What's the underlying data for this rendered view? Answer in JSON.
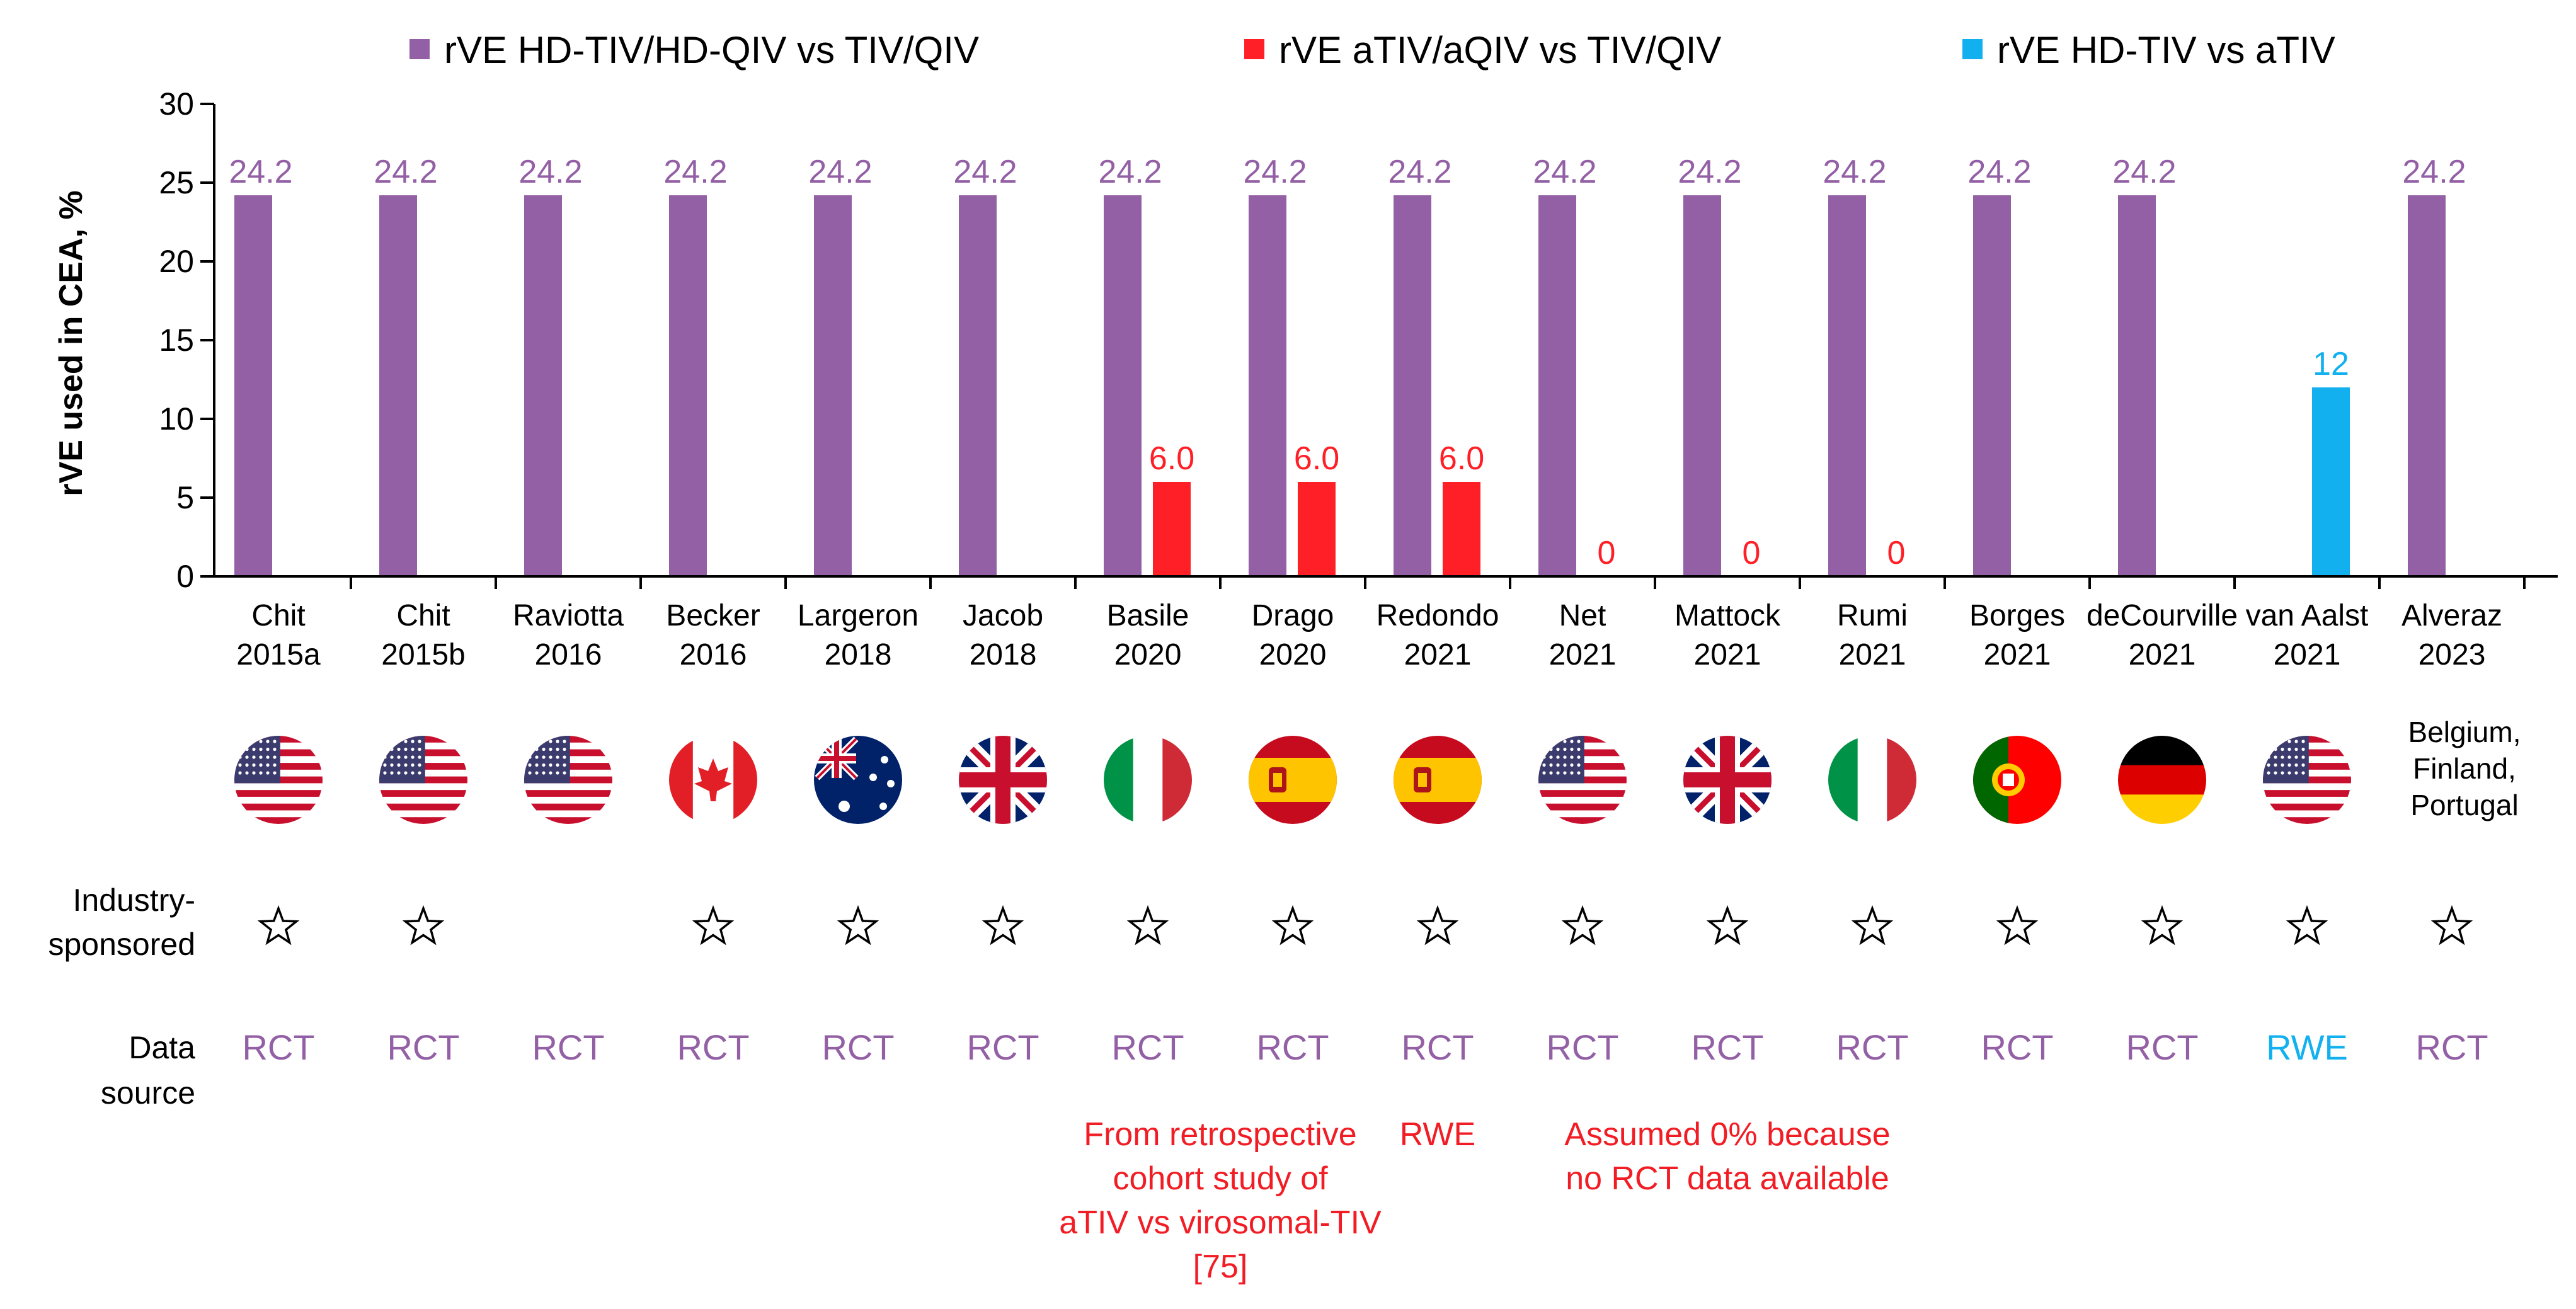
{
  "colors": {
    "hd": "#935fa5",
    "adj": "#ff1f26",
    "hdvsa": "#12b0ef",
    "note": "#f21c24"
  },
  "chart_data": {
    "type": "bar",
    "title": "",
    "ylabel": "rVE used in CEA, %",
    "ylim": [
      0,
      30
    ],
    "yticks": [
      0,
      5,
      10,
      15,
      20,
      25,
      30
    ],
    "legend": [
      {
        "key": "hd",
        "label": "rVE HD-TIV/HD-QIV vs TIV/QIV"
      },
      {
        "key": "adj",
        "label": "rVE aTIV/aQIV vs TIV/QIV"
      },
      {
        "key": "hdvsa",
        "label": "rVE HD-TIV vs aTIV"
      }
    ],
    "categories": [
      {
        "name": "Chit",
        "year": "2015a"
      },
      {
        "name": "Chit",
        "year": "2015b"
      },
      {
        "name": "Raviotta",
        "year": "2016"
      },
      {
        "name": "Becker",
        "year": "2016"
      },
      {
        "name": "Largeron",
        "year": "2018"
      },
      {
        "name": "Jacob",
        "year": "2018"
      },
      {
        "name": "Basile",
        "year": "2020"
      },
      {
        "name": "Drago",
        "year": "2020"
      },
      {
        "name": "Redondo",
        "year": "2021"
      },
      {
        "name": "Net",
        "year": "2021"
      },
      {
        "name": "Mattock",
        "year": "2021"
      },
      {
        "name": "Rumi",
        "year": "2021"
      },
      {
        "name": "Borges",
        "year": "2021"
      },
      {
        "name": "deCourville",
        "year": "2021"
      },
      {
        "name": "van Aalst",
        "year": "2021"
      },
      {
        "name": "Alveraz",
        "year": "2023"
      }
    ],
    "series": [
      {
        "name": "rVE HD-TIV/HD-QIV vs TIV/QIV",
        "key": "hd",
        "slot": 0,
        "values": [
          24.2,
          24.2,
          24.2,
          24.2,
          24.2,
          24.2,
          24.2,
          24.2,
          24.2,
          24.2,
          24.2,
          24.2,
          24.2,
          24.2,
          null,
          24.2
        ],
        "labels": [
          "24.2",
          "24.2",
          "24.2",
          "24.2",
          "24.2",
          "24.2",
          "24.2",
          "24.2",
          "24.2",
          "24.2",
          "24.2",
          "24.2",
          "24.2",
          "24.2",
          null,
          "24.2"
        ]
      },
      {
        "name": "rVE aTIV/aQIV vs TIV/QIV",
        "key": "adj",
        "slot": 1,
        "values": [
          null,
          null,
          null,
          null,
          null,
          null,
          6,
          6,
          6,
          0,
          0,
          0,
          null,
          null,
          null,
          null
        ],
        "labels": [
          null,
          null,
          null,
          null,
          null,
          null,
          "6.0",
          "6.0",
          "6.0",
          "0",
          "0",
          "0",
          null,
          null,
          null,
          null
        ]
      },
      {
        "name": "rVE HD-TIV vs aTIV",
        "key": "hdvsa",
        "slot": 1,
        "values": [
          null,
          null,
          null,
          null,
          null,
          null,
          null,
          null,
          null,
          null,
          null,
          null,
          null,
          null,
          12,
          null
        ],
        "labels": [
          null,
          null,
          null,
          null,
          null,
          null,
          null,
          null,
          null,
          null,
          null,
          null,
          null,
          null,
          "12",
          null
        ]
      }
    ]
  },
  "rows": {
    "industry_label": [
      "Industry-",
      "sponsored"
    ],
    "source_label": [
      "Data",
      "source"
    ]
  },
  "countries": [
    {
      "flag": "us-flag-icon"
    },
    {
      "flag": "us-flag-icon"
    },
    {
      "flag": "us-flag-icon"
    },
    {
      "flag": "canada-flag-icon"
    },
    {
      "flag": "australia-flag-icon"
    },
    {
      "flag": "uk-flag-icon"
    },
    {
      "flag": "italy-flag-icon"
    },
    {
      "flag": "spain-flag-icon"
    },
    {
      "flag": "spain-flag-icon"
    },
    {
      "flag": "us-flag-icon"
    },
    {
      "flag": "uk-flag-icon"
    },
    {
      "flag": "italy-flag-icon"
    },
    {
      "flag": "portugal-flag-icon"
    },
    {
      "flag": "germany-flag-icon"
    },
    {
      "flag": "us-flag-icon"
    },
    {
      "text": [
        "Belgium,",
        "Finland,",
        "Portugal"
      ]
    }
  ],
  "industry_sponsored": [
    true,
    true,
    false,
    true,
    true,
    true,
    true,
    true,
    true,
    true,
    true,
    true,
    true,
    true,
    true,
    true
  ],
  "industry_star": "☆",
  "data_sources": [
    "RCT",
    "RCT",
    "RCT",
    "RCT",
    "RCT",
    "RCT",
    "RCT",
    "RCT",
    "RCT",
    "RCT",
    "RCT",
    "RCT",
    "RCT",
    "RCT",
    "RWE",
    "RCT"
  ],
  "notes": [
    {
      "lines": [
        "From retrospective",
        "cohort study of",
        "aTIV vs virosomal-TIV",
        "[75]"
      ],
      "from": 6,
      "to": 7
    },
    {
      "lines": [
        "RWE"
      ],
      "from": 8,
      "to": 8
    },
    {
      "lines": [
        "Assumed 0% because",
        "no RCT data available"
      ],
      "from": 9,
      "to": 11
    }
  ]
}
